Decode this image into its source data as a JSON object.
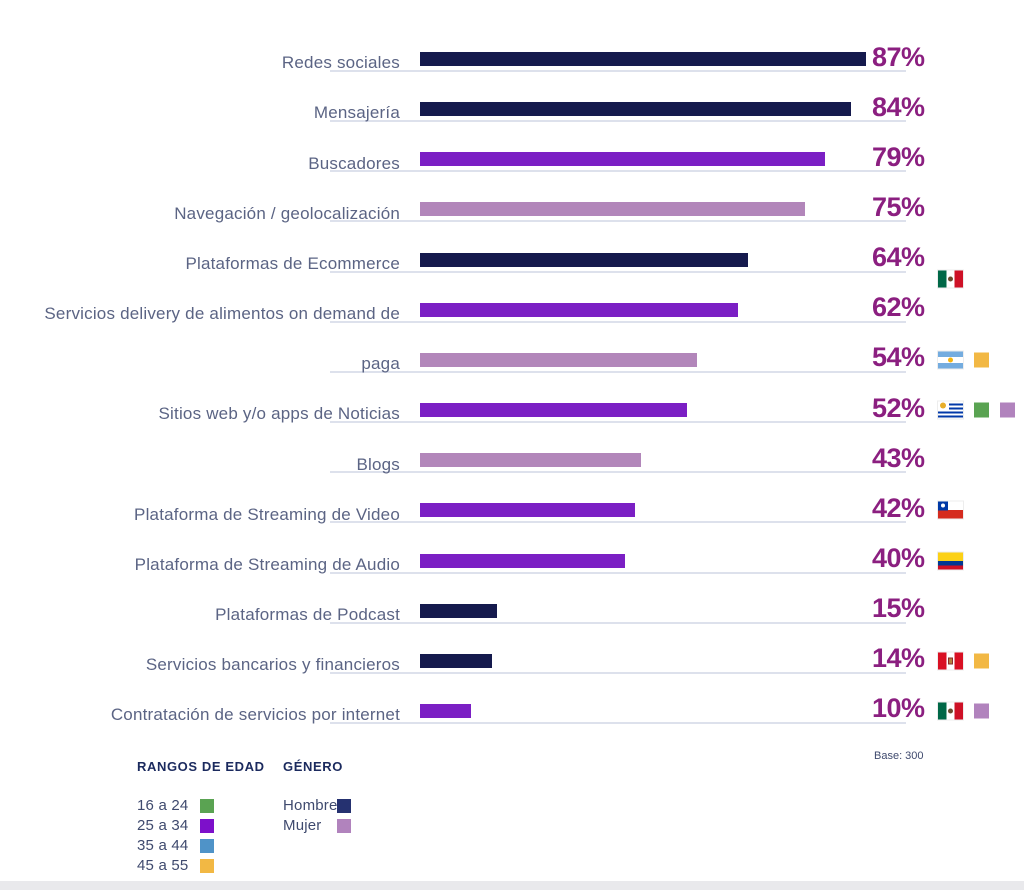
{
  "chart_data": {
    "type": "bar",
    "orientation": "horizontal",
    "title": "",
    "unit": "%",
    "categories": [
      "Redes sociales",
      "Mensajería",
      "Buscadores",
      "Navegación / geolocalización",
      "Plataformas de Ecommerce",
      "Servicios delivery de alimentos on demand de",
      "paga",
      "Sitios web y/o apps de Noticias",
      "Blogs",
      "Plataforma de Streaming de Video",
      "Plataforma de Streaming de Audio",
      "Plataformas de Podcast",
      "Servicios bancarios y financieros",
      "Contratación de servicios por internet"
    ],
    "values": [
      87,
      84,
      79,
      75,
      64,
      62,
      54,
      52,
      43,
      42,
      40,
      15,
      14,
      10
    ],
    "bar_styles": [
      "navy",
      "navy",
      "violet",
      "mauve",
      "navy",
      "violet",
      "mauve",
      "violet",
      "mauve",
      "violet",
      "violet",
      "navy",
      "navy",
      "violet"
    ],
    "row_flags": [
      [],
      [],
      [],
      [],
      [
        "mexico"
      ],
      [],
      [
        "argentina"
      ],
      [
        "uruguay"
      ],
      [],
      [
        "chile"
      ],
      [
        "colombia"
      ],
      [],
      [
        "peru"
      ],
      [
        "mexico"
      ]
    ],
    "row_squares": [
      [],
      [],
      [],
      [],
      [],
      [],
      [
        "yellow"
      ],
      [
        "green",
        "mujer"
      ],
      [],
      [],
      [],
      [],
      [
        "yellow"
      ],
      [
        "mujer"
      ]
    ],
    "xlim": [
      0,
      100
    ],
    "grid": false,
    "value_labels": "right"
  },
  "colors": {
    "navy": "#151a4d",
    "violet": "#7b1fc4",
    "mauve": "#b286ba",
    "percent": "#8b1f80",
    "label": "#5b6484",
    "track": "#dde1ec",
    "green": "#5aa352",
    "purple": "#7d10ca",
    "blue": "#4f93c8",
    "yellow": "#f2b844",
    "hombre": "#253170",
    "mujer": "#b183bd"
  },
  "legend": {
    "age_title": "RANGOS DE EDAD",
    "gender_title": "GÉNERO",
    "age_items": [
      {
        "label": "16 a 24",
        "color": "green"
      },
      {
        "label": "25 a 34",
        "color": "purple"
      },
      {
        "label": "35 a 44",
        "color": "blue"
      },
      {
        "label": "45 a 55",
        "color": "yellow"
      }
    ],
    "gender_items": [
      {
        "label": "Hombre",
        "color": "hombre"
      },
      {
        "label": "Mujer",
        "color": "mujer"
      }
    ]
  },
  "base_note": "Base: 300"
}
